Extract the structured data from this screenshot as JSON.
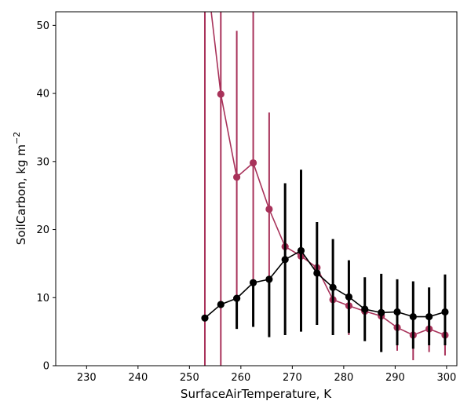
{
  "chart_data": {
    "type": "line",
    "title": "",
    "xlabel": "SurfaceAirTemperature,  K",
    "ylabel": "SoilCarbon,  kg m",
    "ylabel_sup": "−2",
    "xlim": [
      224,
      302
    ],
    "ylim": [
      0,
      52
    ],
    "xticks": [
      230,
      240,
      250,
      260,
      270,
      280,
      290,
      300
    ],
    "yticks": [
      0,
      10,
      20,
      30,
      40,
      50
    ],
    "grid": false,
    "legend": "none",
    "x": [
      253.0,
      256.1,
      259.2,
      262.4,
      265.5,
      268.6,
      271.7,
      274.8,
      277.9,
      281.0,
      284.1,
      287.3,
      290.4,
      293.5,
      296.6,
      299.7
    ],
    "series": [
      {
        "color": "#a8325a",
        "values": [
          60,
          39.9,
          27.7,
          29.8,
          23.0,
          17.5,
          16.1,
          14.4,
          9.7,
          8.8,
          8.0,
          7.3,
          5.6,
          4.5,
          5.4,
          4.5
        ],
        "err_low": [
          0,
          0,
          6.0,
          6.5,
          9.0,
          10.0,
          11.0,
          9.5,
          5.0,
          4.5,
          4.5,
          4.0,
          2.2,
          0.8,
          2.0,
          1.5
        ],
        "err_high": [
          60,
          60,
          49.2,
          60,
          37.2,
          25.0,
          21.0,
          19.5,
          14.5,
          13.0,
          11.5,
          11.0,
          9.0,
          8.5,
          8.8,
          7.5
        ]
      },
      {
        "color": "#000000",
        "values": [
          7.0,
          9.0,
          9.9,
          12.2,
          12.7,
          15.6,
          16.9,
          13.6,
          11.5,
          10.1,
          8.3,
          7.8,
          7.9,
          7.2,
          7.2,
          7.9
        ],
        "err_low": [
          7.0,
          9.0,
          5.4,
          5.7,
          4.2,
          4.5,
          5.0,
          6.0,
          4.5,
          4.8,
          3.6,
          2.0,
          3.0,
          2.5,
          3.0,
          3.0
        ],
        "err_high": [
          7.0,
          9.0,
          9.9,
          12.2,
          12.7,
          26.8,
          28.8,
          21.1,
          18.6,
          15.5,
          13.0,
          13.5,
          12.7,
          12.4,
          11.5,
          13.4
        ]
      }
    ]
  }
}
